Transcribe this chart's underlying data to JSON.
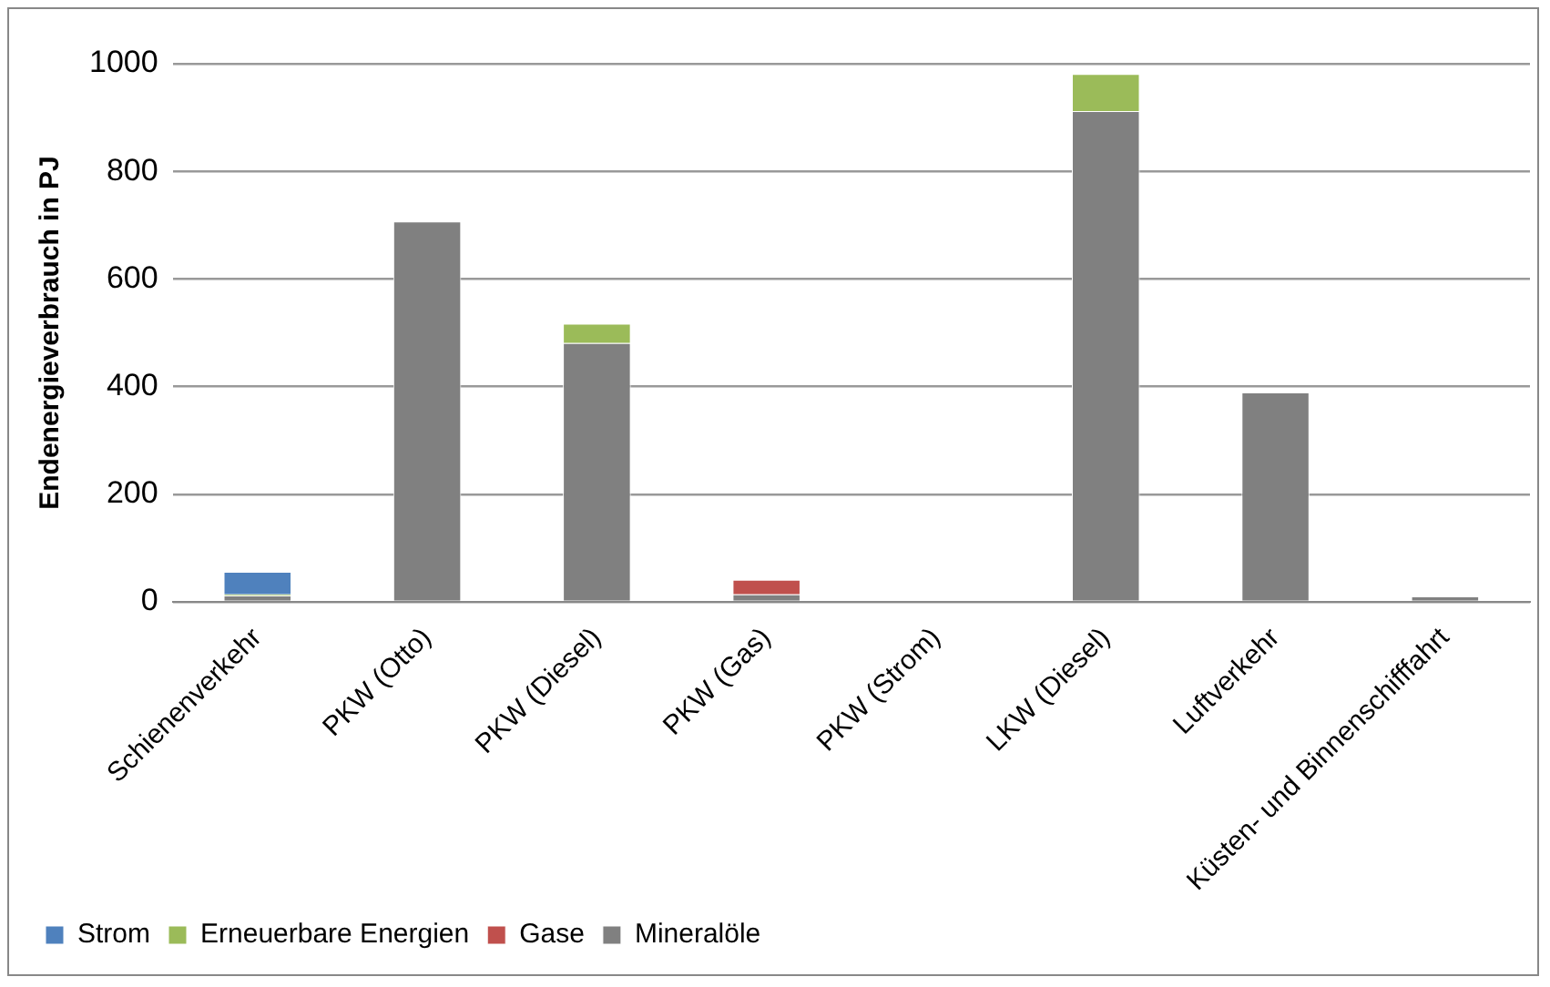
{
  "chart_data": {
    "type": "bar",
    "stacked": true,
    "ylabel": "Endenergieverbrauch in PJ",
    "categories": [
      "Schienenverkehr",
      "PKW (Otto)",
      "PKW (Diesel)",
      "PKW (Gas)",
      "PKW (Strom)",
      "LKW (Diesel)",
      "Luftverkehr",
      "Küsten- und Binnenschifffahrt"
    ],
    "series": [
      {
        "name": "Mineralöle",
        "color": "#808080",
        "values": [
          12,
          707,
          481,
          14,
          0,
          912,
          389,
          10
        ]
      },
      {
        "name": "Gase",
        "color": "#c0504d",
        "values": [
          0,
          0,
          0,
          27,
          0,
          0,
          0,
          0
        ]
      },
      {
        "name": "Erneuerbare Energien",
        "color": "#9bbb59",
        "values": [
          2,
          0,
          36,
          0,
          0,
          69,
          0,
          0
        ]
      },
      {
        "name": "Strom",
        "color": "#4f81bd",
        "values": [
          42,
          0,
          0,
          0,
          0,
          0,
          0,
          0
        ]
      }
    ],
    "ylim": [
      0,
      1000
    ],
    "yticks": [
      0,
      200,
      400,
      600,
      800,
      1000
    ],
    "grid": "y",
    "legend": "bottom left"
  }
}
